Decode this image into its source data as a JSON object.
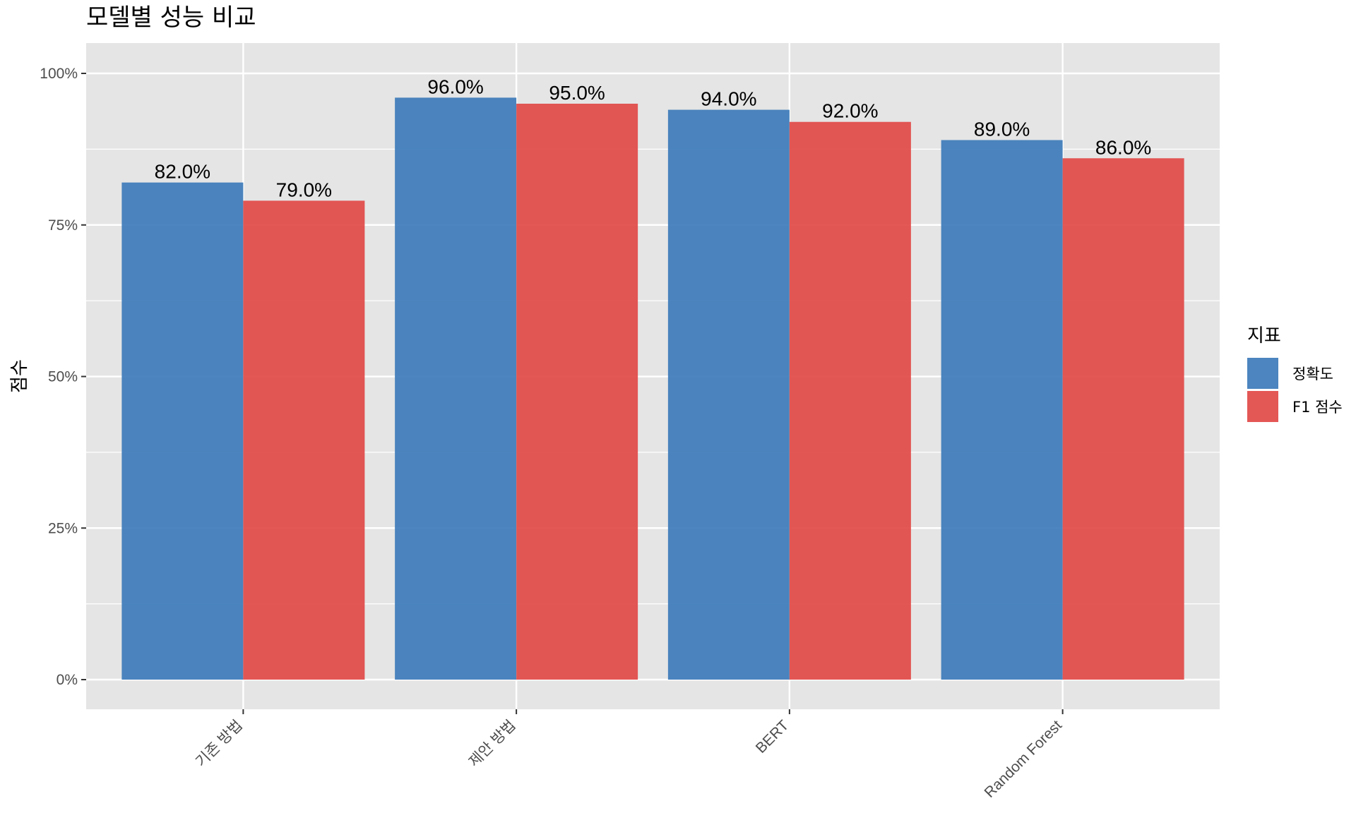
{
  "chart_data": {
    "type": "bar",
    "title": "모델별 성능 비교",
    "xlabel": "",
    "ylabel": "점수",
    "categories": [
      "기존 방법",
      "제안 방법",
      "BERT",
      "Random Forest"
    ],
    "series": [
      {
        "name": "정확도",
        "values": [
          0.82,
          0.96,
          0.94,
          0.89
        ],
        "labels": [
          "82.0%",
          "96.0%",
          "94.0%",
          "89.0%"
        ],
        "color": "#3878b8"
      },
      {
        "name": "F1 점수",
        "values": [
          0.79,
          0.95,
          0.92,
          0.86
        ],
        "labels": [
          "79.0%",
          "95.0%",
          "92.0%",
          "86.0%"
        ],
        "color": "#e04543"
      }
    ],
    "yticks": [
      {
        "value": 0,
        "label": "0%"
      },
      {
        "value": 0.25,
        "label": "25%"
      },
      {
        "value": 0.5,
        "label": "50%"
      },
      {
        "value": 0.75,
        "label": "75%"
      },
      {
        "value": 1.0,
        "label": "100%"
      }
    ],
    "ylim": [
      -0.05,
      1.05
    ],
    "legend_title": "지표",
    "legend_position": "right",
    "grid": true,
    "panel_background": "#e5e5e5",
    "grid_color": "#ffffff"
  }
}
